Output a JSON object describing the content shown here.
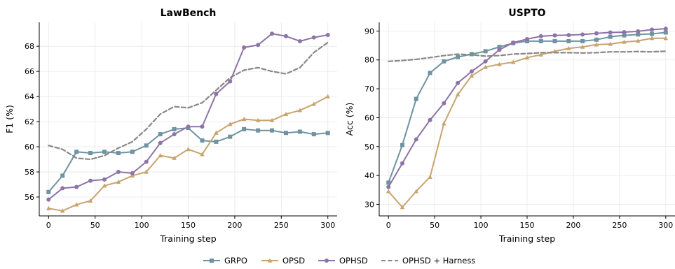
{
  "legend": [
    {
      "name": "GRPO",
      "color": "#6e93a1",
      "marker": "square",
      "dash": false
    },
    {
      "name": "OPSD",
      "color": "#c8a46e",
      "marker": "triangle",
      "dash": false
    },
    {
      "name": "OPHSD",
      "color": "#8d73a8",
      "marker": "circle",
      "dash": false
    },
    {
      "name": "OPHSD + Harness",
      "color": "#888888",
      "marker": "none",
      "dash": true
    }
  ],
  "chart_data": [
    {
      "type": "line",
      "title": "LawBench",
      "xlabel": "Training step",
      "ylabel": "F1 (%)",
      "xlim": [
        -10,
        310
      ],
      "ylim": [
        54.5,
        69.9
      ],
      "xticks": [
        0,
        50,
        100,
        150,
        200,
        250,
        300
      ],
      "yticks": [
        56,
        58,
        60,
        62,
        64,
        66,
        68
      ],
      "grid": true,
      "series": [
        {
          "name": "GRPO",
          "x": [
            0,
            15,
            30,
            45,
            60,
            75,
            90,
            105,
            120,
            135,
            150,
            165,
            180,
            195,
            210,
            225,
            240,
            255,
            270,
            285,
            300
          ],
          "y": [
            56.4,
            57.7,
            59.6,
            59.5,
            59.6,
            59.5,
            59.6,
            60.1,
            61.0,
            61.4,
            61.5,
            60.5,
            60.4,
            60.8,
            61.4,
            61.3,
            61.3,
            61.1,
            61.2,
            61.0,
            61.1
          ]
        },
        {
          "name": "OPSD",
          "x": [
            0,
            15,
            30,
            45,
            60,
            75,
            90,
            105,
            120,
            135,
            150,
            165,
            180,
            195,
            210,
            225,
            240,
            255,
            270,
            285,
            300
          ],
          "y": [
            55.1,
            54.9,
            55.4,
            55.7,
            56.9,
            57.2,
            57.7,
            58.0,
            59.3,
            59.1,
            59.8,
            59.4,
            61.1,
            61.8,
            62.2,
            62.1,
            62.1,
            62.6,
            62.9,
            63.4,
            64.0
          ]
        },
        {
          "name": "OPHSD",
          "x": [
            0,
            15,
            30,
            45,
            60,
            75,
            90,
            105,
            120,
            135,
            150,
            165,
            180,
            195,
            210,
            225,
            240,
            255,
            270,
            285,
            300
          ],
          "y": [
            55.8,
            56.7,
            56.8,
            57.3,
            57.4,
            58.0,
            57.9,
            58.8,
            60.3,
            61.0,
            61.6,
            61.6,
            64.2,
            65.2,
            67.9,
            68.1,
            69.0,
            68.8,
            68.4,
            68.7,
            68.9
          ]
        },
        {
          "name": "OPHSD + Harness",
          "x": [
            0,
            15,
            30,
            45,
            60,
            75,
            90,
            105,
            120,
            135,
            150,
            165,
            180,
            195,
            210,
            225,
            240,
            255,
            270,
            285,
            300
          ],
          "y": [
            60.1,
            59.8,
            59.1,
            59.0,
            59.3,
            59.9,
            60.4,
            61.4,
            62.6,
            63.2,
            63.1,
            63.5,
            64.5,
            65.5,
            66.1,
            66.3,
            66.0,
            65.8,
            66.3,
            67.5,
            68.3
          ]
        }
      ]
    },
    {
      "type": "line",
      "title": "USPTO",
      "xlabel": "Training step",
      "ylabel": "Acc (%)",
      "xlim": [
        -10,
        310
      ],
      "ylim": [
        26,
        93
      ],
      "xticks": [
        0,
        50,
        100,
        150,
        200,
        250,
        300
      ],
      "yticks": [
        30,
        40,
        50,
        60,
        70,
        80,
        90
      ],
      "grid": true,
      "series": [
        {
          "name": "GRPO",
          "x": [
            0,
            15,
            30,
            45,
            60,
            75,
            90,
            105,
            120,
            135,
            150,
            165,
            180,
            195,
            210,
            225,
            240,
            255,
            270,
            285,
            300
          ],
          "y": [
            37.5,
            50.5,
            66.5,
            75.5,
            79.5,
            81.0,
            82.0,
            83.0,
            84.5,
            85.8,
            86.5,
            86.5,
            86.5,
            86.5,
            86.5,
            87.0,
            88.0,
            88.5,
            88.8,
            89.0,
            89.5
          ]
        },
        {
          "name": "OPSD",
          "x": [
            0,
            15,
            30,
            45,
            60,
            75,
            90,
            105,
            120,
            135,
            150,
            165,
            180,
            195,
            210,
            225,
            240,
            255,
            270,
            285,
            300
          ],
          "y": [
            34.5,
            29.0,
            34.5,
            39.5,
            58.0,
            68.0,
            74.5,
            77.5,
            78.5,
            79.2,
            80.8,
            81.8,
            83.0,
            84.0,
            84.5,
            85.3,
            85.5,
            86.2,
            86.6,
            87.5,
            87.5
          ]
        },
        {
          "name": "OPHSD",
          "x": [
            0,
            15,
            30,
            45,
            60,
            75,
            90,
            105,
            120,
            135,
            150,
            165,
            180,
            195,
            210,
            225,
            240,
            255,
            270,
            285,
            300
          ],
          "y": [
            36.0,
            44.2,
            52.5,
            59.2,
            65.0,
            72.0,
            76.0,
            79.5,
            83.5,
            86.0,
            87.2,
            88.2,
            88.5,
            88.6,
            88.8,
            89.2,
            89.5,
            89.6,
            89.9,
            90.5,
            90.8
          ]
        },
        {
          "name": "OPHSD + Harness",
          "x": [
            0,
            15,
            30,
            45,
            60,
            75,
            90,
            105,
            120,
            135,
            150,
            165,
            180,
            195,
            210,
            225,
            240,
            255,
            270,
            285,
            300
          ],
          "y": [
            79.5,
            79.8,
            80.2,
            80.8,
            81.5,
            82.0,
            81.8,
            81.3,
            81.5,
            82.0,
            82.2,
            82.5,
            82.5,
            82.5,
            82.4,
            82.5,
            82.8,
            82.8,
            82.9,
            82.8,
            83.0
          ]
        }
      ]
    }
  ]
}
